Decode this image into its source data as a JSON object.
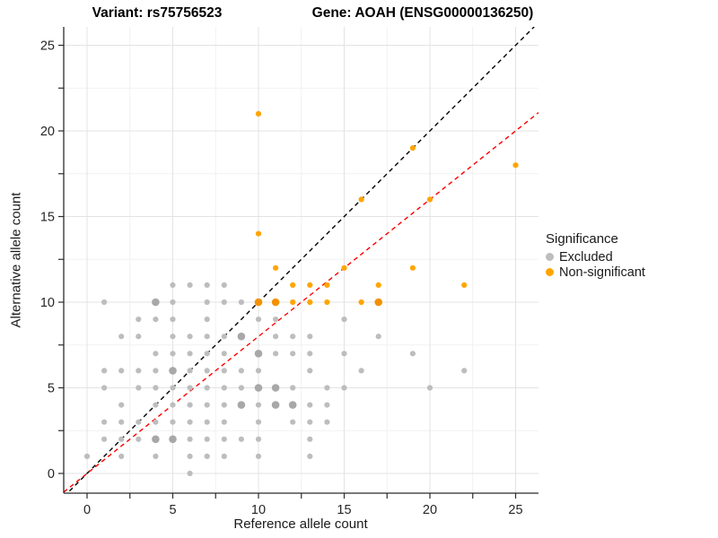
{
  "header": {
    "title_left": "Variant: rs75756523",
    "title_right": "Gene: AOAH (ENSG00000136250)"
  },
  "legend": {
    "title": "Significance",
    "items": [
      {
        "label": "Excluded",
        "color": "#bdbdbd"
      },
      {
        "label": "Non-significant",
        "color": "#FFA500"
      }
    ]
  },
  "chart_data": {
    "type": "scatter",
    "title": "Variant: rs75756523 / Gene: AOAH (ENSG00000136250)",
    "xlabel": "Reference allele count",
    "ylabel": "Alternative allele count",
    "xlim": [
      -1.36,
      26.34
    ],
    "ylim": [
      -1.15,
      26.07
    ],
    "x_major_ticks": [
      0,
      5,
      10,
      15,
      20,
      25
    ],
    "y_major_ticks": [
      0,
      5,
      10,
      15,
      20,
      25
    ],
    "minor_tick_step": 2.5,
    "grid": true,
    "legend_position": "right",
    "series": [
      {
        "name": "Excluded",
        "color": "#bdbdbd",
        "color_large": "#a8a8a8",
        "points": [
          [
            6,
            0,
            1
          ],
          [
            0,
            1,
            1
          ],
          [
            2,
            1,
            1
          ],
          [
            4,
            1,
            1
          ],
          [
            6,
            1,
            1
          ],
          [
            7,
            1,
            1
          ],
          [
            8,
            1,
            1
          ],
          [
            10,
            1,
            1
          ],
          [
            13,
            1,
            1
          ],
          [
            1,
            2,
            1
          ],
          [
            2,
            2,
            1
          ],
          [
            3,
            2,
            1
          ],
          [
            4,
            2,
            2
          ],
          [
            5,
            2,
            2
          ],
          [
            6,
            2,
            1
          ],
          [
            7,
            2,
            1
          ],
          [
            8,
            2,
            1
          ],
          [
            9,
            2,
            1
          ],
          [
            10,
            2,
            1
          ],
          [
            13,
            2,
            1
          ],
          [
            1,
            3,
            1
          ],
          [
            2,
            3,
            1
          ],
          [
            3,
            3,
            1
          ],
          [
            4,
            3,
            1
          ],
          [
            5,
            3,
            1
          ],
          [
            6,
            3,
            1
          ],
          [
            7,
            3,
            1
          ],
          [
            8,
            3,
            1
          ],
          [
            10,
            3,
            1
          ],
          [
            12,
            3,
            1
          ],
          [
            13,
            3,
            1
          ],
          [
            14,
            3,
            1
          ],
          [
            2,
            4,
            1
          ],
          [
            4,
            4,
            1
          ],
          [
            5,
            4,
            1
          ],
          [
            6,
            4,
            1
          ],
          [
            7,
            4,
            1
          ],
          [
            8,
            4,
            1
          ],
          [
            9,
            4,
            2
          ],
          [
            10,
            4,
            1
          ],
          [
            11,
            4,
            2
          ],
          [
            12,
            4,
            2
          ],
          [
            13,
            4,
            1
          ],
          [
            14,
            4,
            1
          ],
          [
            1,
            5,
            1
          ],
          [
            3,
            5,
            1
          ],
          [
            4,
            5,
            1
          ],
          [
            5,
            5,
            1
          ],
          [
            6,
            5,
            1
          ],
          [
            7,
            5,
            1
          ],
          [
            8,
            5,
            1
          ],
          [
            9,
            5,
            1
          ],
          [
            10,
            5,
            2
          ],
          [
            11,
            5,
            2
          ],
          [
            12,
            5,
            1
          ],
          [
            14,
            5,
            1
          ],
          [
            15,
            5,
            1
          ],
          [
            20,
            5,
            1
          ],
          [
            1,
            6,
            1
          ],
          [
            2,
            6,
            1
          ],
          [
            3,
            6,
            1
          ],
          [
            4,
            6,
            1
          ],
          [
            5,
            6,
            2
          ],
          [
            6,
            6,
            1
          ],
          [
            7,
            6,
            1
          ],
          [
            8,
            6,
            1
          ],
          [
            9,
            6,
            1
          ],
          [
            10,
            6,
            1
          ],
          [
            13,
            6,
            1
          ],
          [
            16,
            6,
            1
          ],
          [
            22,
            6,
            1
          ],
          [
            4,
            7,
            1
          ],
          [
            5,
            7,
            1
          ],
          [
            6,
            7,
            1
          ],
          [
            7,
            7,
            1
          ],
          [
            8,
            7,
            1
          ],
          [
            10,
            7,
            2
          ],
          [
            11,
            7,
            1
          ],
          [
            12,
            7,
            1
          ],
          [
            13,
            7,
            1
          ],
          [
            15,
            7,
            1
          ],
          [
            19,
            7,
            1
          ],
          [
            2,
            8,
            1
          ],
          [
            3,
            8,
            1
          ],
          [
            5,
            8,
            1
          ],
          [
            6,
            8,
            1
          ],
          [
            7,
            8,
            1
          ],
          [
            8,
            8,
            1
          ],
          [
            9,
            8,
            2
          ],
          [
            11,
            8,
            1
          ],
          [
            12,
            8,
            1
          ],
          [
            13,
            8,
            1
          ],
          [
            17,
            8,
            1
          ],
          [
            3,
            9,
            1
          ],
          [
            4,
            9,
            1
          ],
          [
            5,
            9,
            1
          ],
          [
            7,
            9,
            1
          ],
          [
            10,
            9,
            1
          ],
          [
            11,
            9,
            1
          ],
          [
            15,
            9,
            1
          ],
          [
            1,
            10,
            1
          ],
          [
            4,
            10,
            2
          ],
          [
            5,
            10,
            1
          ],
          [
            7,
            10,
            1
          ],
          [
            8,
            10,
            1
          ],
          [
            9,
            10,
            1
          ],
          [
            5,
            11,
            1
          ],
          [
            6,
            11,
            1
          ],
          [
            7,
            11,
            1
          ],
          [
            8,
            11,
            1
          ]
        ]
      },
      {
        "name": "Non-significant",
        "color": "#FFA500",
        "color_large": "#f39100",
        "points": [
          [
            10,
            10,
            2
          ],
          [
            11,
            10,
            2
          ],
          [
            12,
            10,
            1
          ],
          [
            13,
            10,
            1
          ],
          [
            14,
            10,
            1
          ],
          [
            16,
            10,
            1
          ],
          [
            17,
            10,
            2
          ],
          [
            12,
            11,
            1
          ],
          [
            13,
            11,
            1
          ],
          [
            14,
            11,
            1
          ],
          [
            17,
            11,
            1
          ],
          [
            22,
            11,
            1
          ],
          [
            11,
            12,
            1
          ],
          [
            15,
            12,
            1
          ],
          [
            19,
            12,
            1
          ],
          [
            10,
            14,
            1
          ],
          [
            16,
            16,
            1
          ],
          [
            20,
            16,
            1
          ],
          [
            25,
            18,
            1
          ],
          [
            19,
            19,
            1
          ],
          [
            10,
            21,
            1
          ]
        ]
      }
    ],
    "lines": [
      {
        "name": "identity-line",
        "slope": 1,
        "intercept": 0,
        "color": "#000000",
        "dash": "5,4"
      },
      {
        "name": "fit-line",
        "slope": 0.8,
        "intercept": 0,
        "color": "#ff0000",
        "dash": "5,4"
      }
    ],
    "colors": {
      "grid_major": "#e3e3e3",
      "grid_minor": "#f1f1f1",
      "axis_line": "#2b2b2b",
      "tick_text": "#262626"
    }
  }
}
